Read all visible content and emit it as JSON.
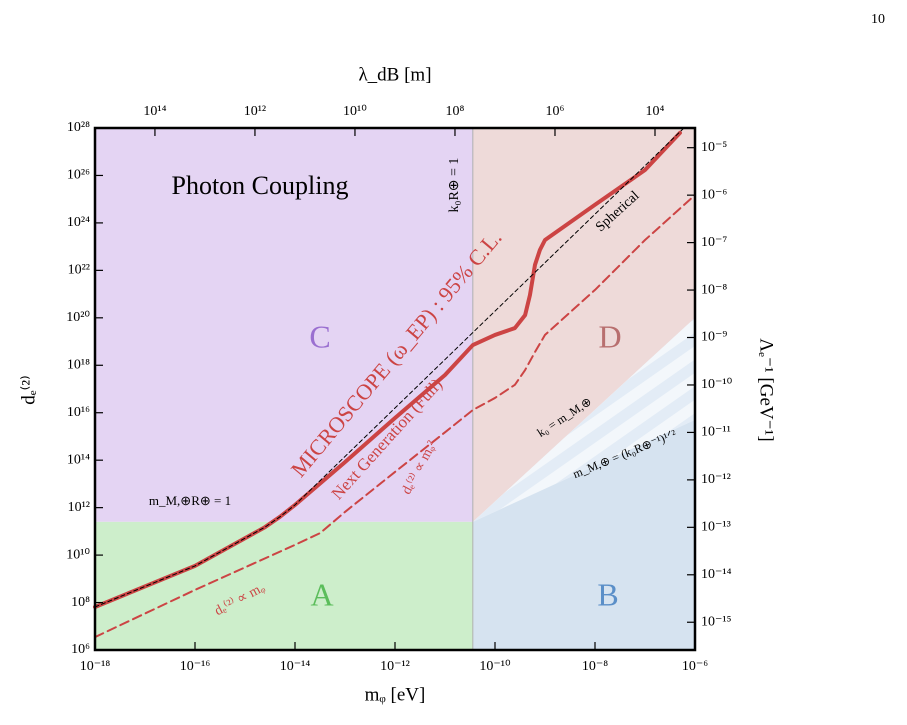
{
  "page_number": "10",
  "chart_data": {
    "type": "line",
    "xlabel": "mᵩ [eV]",
    "ylabel": "dₑ⁽²⁾",
    "x2label": "λ_dB [m]",
    "y2label": "Λₑ⁻¹ [GeV⁻¹]",
    "xscale": "log",
    "yscale": "log",
    "xlim": [
      1e-18,
      1e-06
    ],
    "ylim": [
      1000000.0,
      1e+28
    ],
    "x2lim": [
      1580000000000000.0,
      1585
    ],
    "y2lim": [
      2.6e-16,
      2.6e-05
    ],
    "xticks": [
      {
        "value": 1e-18,
        "label": "10⁻¹⁸"
      },
      {
        "value": 1e-16,
        "label": "10⁻¹⁶"
      },
      {
        "value": 1e-14,
        "label": "10⁻¹⁴"
      },
      {
        "value": 1e-12,
        "label": "10⁻¹²"
      },
      {
        "value": 1e-10,
        "label": "10⁻¹⁰"
      },
      {
        "value": 1e-08,
        "label": "10⁻⁸"
      },
      {
        "value": 1e-06,
        "label": "10⁻⁶"
      }
    ],
    "yticks": [
      {
        "value": 1000000.0,
        "label": "10⁶"
      },
      {
        "value": 100000000.0,
        "label": "10⁸"
      },
      {
        "value": 10000000000.0,
        "label": "10¹⁰"
      },
      {
        "value": 1000000000000.0,
        "label": "10¹²"
      },
      {
        "value": 100000000000000.0,
        "label": "10¹⁴"
      },
      {
        "value": 1e+16,
        "label": "10¹⁶"
      },
      {
        "value": 1e+18,
        "label": "10¹⁸"
      },
      {
        "value": 1e+20,
        "label": "10²⁰"
      },
      {
        "value": 1e+22,
        "label": "10²²"
      },
      {
        "value": 1e+24,
        "label": "10²⁴"
      },
      {
        "value": 1e+26,
        "label": "10²⁶"
      },
      {
        "value": 1e+28,
        "label": "10²⁸"
      }
    ],
    "x2ticks": [
      {
        "value": 100000000000000.0,
        "label": "10¹⁴"
      },
      {
        "value": 1000000000000.0,
        "label": "10¹²"
      },
      {
        "value": 10000000000.0,
        "label": "10¹⁰"
      },
      {
        "value": 100000000.0,
        "label": "10⁸"
      },
      {
        "value": 1000000.0,
        "label": "10⁶"
      },
      {
        "value": 10000.0,
        "label": "10⁴"
      }
    ],
    "y2ticks": [
      {
        "value": 1e-05,
        "label": "10⁻⁵"
      },
      {
        "value": 1e-06,
        "label": "10⁻⁶"
      },
      {
        "value": 1e-07,
        "label": "10⁻⁷"
      },
      {
        "value": 1e-08,
        "label": "10⁻⁸"
      },
      {
        "value": 1e-09,
        "label": "10⁻⁹"
      },
      {
        "value": 1e-10,
        "label": "10⁻¹⁰"
      },
      {
        "value": 1e-11,
        "label": "10⁻¹¹"
      },
      {
        "value": 1e-12,
        "label": "10⁻¹²"
      },
      {
        "value": 1e-13,
        "label": "10⁻¹³"
      },
      {
        "value": 1e-14,
        "label": "10⁻¹⁴"
      },
      {
        "value": 1e-15,
        "label": "10⁻¹⁵"
      }
    ],
    "regions": [
      {
        "name": "C",
        "color": "#e4d4f3",
        "label_color": "#9a6fd0",
        "x": [
          1e-18,
          3.6e-11,
          3.6e-11,
          1e-18
        ],
        "y": [
          250000000000.0,
          250000000000.0,
          1e+28,
          1e+28
        ]
      },
      {
        "name": "A",
        "color": "#cdeecb",
        "label_color": "#5bbd5b",
        "x": [
          1e-18,
          3.6e-11,
          3.6e-11,
          1e-18
        ],
        "y": [
          1000000.0,
          1000000.0,
          250000000000.0,
          250000000000.0
        ]
      },
      {
        "name": "D",
        "color": "#eedad9",
        "label_color": "#b86f6f",
        "x": [
          3.6e-11,
          1e-06,
          1e-06,
          3.6e-11
        ],
        "y": [
          250000000000.0,
          1e+20,
          1e+28,
          1e+28
        ]
      },
      {
        "color": "#e3ecf6",
        "hatch": true,
        "x": [
          3.6e-11,
          1e-06,
          1e-06
        ],
        "y": [
          250000000000.0,
          1e+20,
          5000000000000000.0
        ]
      },
      {
        "name": "B",
        "color": "#d6e3f0",
        "label_color": "#5b8fc8",
        "x": [
          3.6e-11,
          1e-06,
          1e-06,
          3.6e-11
        ],
        "y": [
          250000000000.0,
          5000000000000000.0,
          1000000.0,
          1000000.0
        ]
      }
    ],
    "series": [
      {
        "color": "#cc4444",
        "style": "dashed",
        "width": 2,
        "x": [
          1e-18,
          1e-16,
          1e-14,
          3.2e-14,
          1e-13,
          1e-12,
          1e-11,
          3.6e-11,
          1e-10,
          2.5e-10,
          4e-10,
          6.3e-10,
          1e-09,
          1e-08,
          1e-07,
          1e-06
        ],
        "y": [
          3500000.0,
          340000000.0,
          27000000000.0,
          85000000000.0,
          660000000000.0,
          32000000000000.0,
          1500000000000000.0,
          1.3e+16,
          4.2e+16,
          1.5e+17,
          6.3e+17,
          3.6e+18,
          1.9e+19,
          1.5e+21,
          1.9e+23,
          1.5e+25
        ]
      },
      {
        "color": "#cc4444",
        "style": "solid",
        "width": 4,
        "x": [
          1e-18,
          1e-16,
          2.5e-15,
          5e-15,
          1e-14,
          1e-13,
          1e-12,
          1e-11,
          3.6e-11,
          1e-10,
          2.5e-10,
          4e-10,
          5e-10,
          6.3e-10,
          7.9e-10,
          1e-09,
          1e-08,
          1e-07,
          5e-07
        ],
        "y": [
          65000000.0,
          3500000000.0,
          150000000000.0,
          410000000000.0,
          1300000000000.0,
          83000000000000.0,
          6000000000000000.0,
          3.9e+17,
          7.1e+18,
          1.9e+19,
          3.7e+19,
          1.3e+20,
          9.1e+20,
          1.7e+22,
          7.2e+22,
          1.9e+23,
          5.8e+24,
          1.7e+26,
          6.2e+27
        ]
      },
      {
        "color": "#000000",
        "style": "dashed",
        "width": 1,
        "x": [
          1e-18,
          1e-16,
          2.5e-15,
          5e-15,
          1e-14,
          6e-07
        ],
        "y": [
          65000000.0,
          3500000000.0,
          150000000000.0,
          410000000000.0,
          1300000000000.0,
          1e+28
        ]
      }
    ],
    "vlines": [
      {
        "x": 3.6e-11,
        "color": "#b0b0b0"
      }
    ],
    "annotations": [
      "Photon Coupling",
      "k₀R⊕ = 1",
      "MICROSCOPE (ω_EP) : 95% C.L.",
      "Next Generation (Full)",
      "dₑ⁽²⁾ ∝ mᵩ²",
      "dₑ⁽²⁾ ∝ mᵩ",
      "Spherical",
      "m_M,⊕R⊕ = 1",
      "k₀ = m_M,⊕",
      "m_M,⊕ = (k₀R⊕⁻¹)¹ᐟ²"
    ]
  }
}
